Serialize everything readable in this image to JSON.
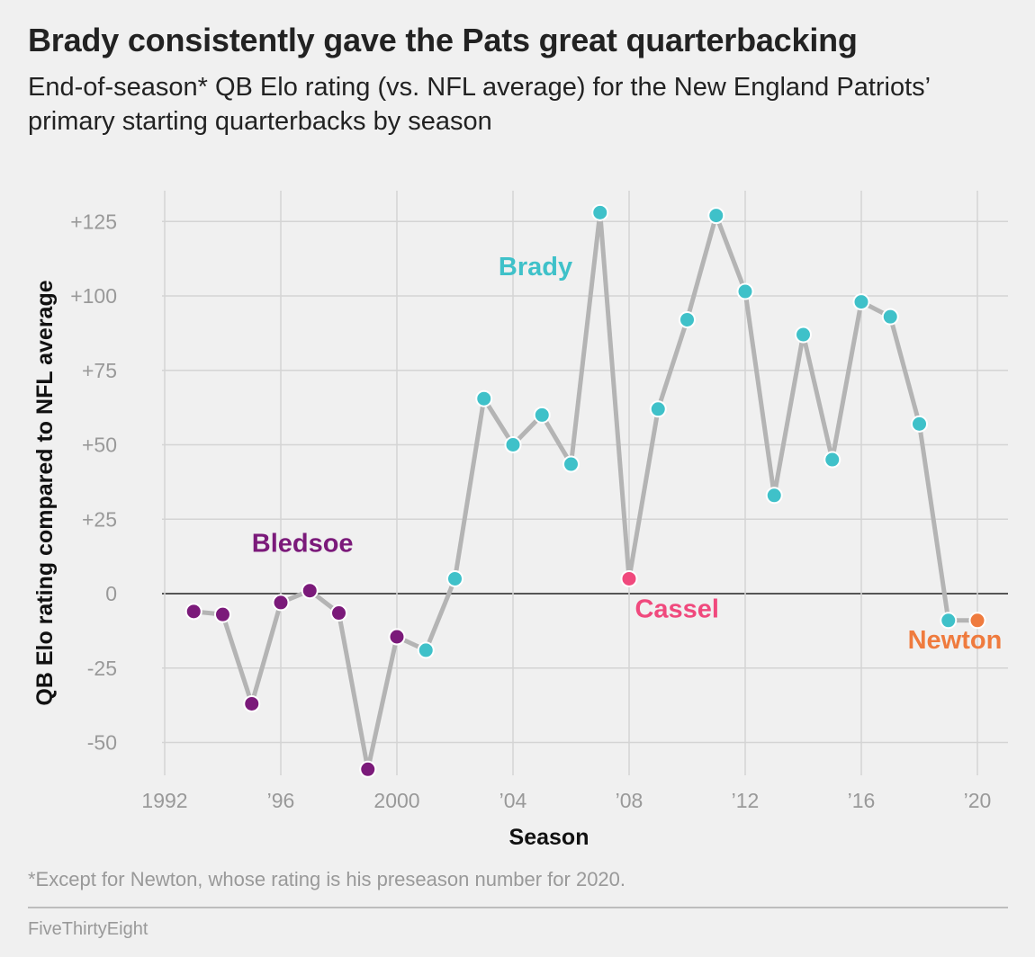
{
  "header": {
    "title": "Brady consistently gave the Pats great quarterbacking",
    "subtitle": "End-of-season* QB Elo rating (vs. NFL average) for the New England Patriots’ primary starting quarterbacks by season"
  },
  "footer": {
    "footnote": "*Except for Newton, whose rating is his preseason number for 2020.",
    "source": "FiveThirtyEight"
  },
  "colors": {
    "Bledsoe": "#7b1a7a",
    "Brady": "#3fc1c9",
    "Cassel": "#f0497d",
    "Newton": "#ef7b3e",
    "line": "#b4b4b4"
  },
  "chart_data": {
    "type": "line",
    "xlabel": "Season",
    "ylabel": "QB Elo rating compared to NFL average",
    "xlim": [
      1992,
      2020
    ],
    "ylim": [
      -60,
      135
    ],
    "x_ticks": [
      {
        "value": 1992,
        "label": "1992"
      },
      {
        "value": 1996,
        "label": "’96"
      },
      {
        "value": 2000,
        "label": "2000"
      },
      {
        "value": 2004,
        "label": "’04"
      },
      {
        "value": 2008,
        "label": "’08"
      },
      {
        "value": 2012,
        "label": "’12"
      },
      {
        "value": 2016,
        "label": "’16"
      },
      {
        "value": 2020,
        "label": "’20"
      }
    ],
    "y_ticks": [
      {
        "value": 125,
        "label": "+125"
      },
      {
        "value": 100,
        "label": "+100"
      },
      {
        "value": 75,
        "label": "+75"
      },
      {
        "value": 50,
        "label": "+50"
      },
      {
        "value": 25,
        "label": "+25"
      },
      {
        "value": 0,
        "label": "0"
      },
      {
        "value": -25,
        "label": "-25"
      },
      {
        "value": -50,
        "label": "-50"
      }
    ],
    "grid": true,
    "series_labels": [
      {
        "name": "Bledsoe",
        "x": 1995,
        "y": 14
      },
      {
        "name": "Brady",
        "x": 2003.5,
        "y": 107
      },
      {
        "name": "Cassel",
        "x": 2008.2,
        "y": -8
      },
      {
        "name": "Newton",
        "x": 2017.6,
        "y": -18.5
      }
    ],
    "points": [
      {
        "season": 1993,
        "value": -6,
        "qb": "Bledsoe"
      },
      {
        "season": 1994,
        "value": -7,
        "qb": "Bledsoe"
      },
      {
        "season": 1995,
        "value": -37,
        "qb": "Bledsoe"
      },
      {
        "season": 1996,
        "value": -3,
        "qb": "Bledsoe"
      },
      {
        "season": 1997,
        "value": 1,
        "qb": "Bledsoe"
      },
      {
        "season": 1998,
        "value": -6.5,
        "qb": "Bledsoe"
      },
      {
        "season": 1999,
        "value": -59,
        "qb": "Bledsoe"
      },
      {
        "season": 2000,
        "value": -14.5,
        "qb": "Bledsoe"
      },
      {
        "season": 2001,
        "value": -19,
        "qb": "Brady"
      },
      {
        "season": 2002,
        "value": 5,
        "qb": "Brady"
      },
      {
        "season": 2003,
        "value": 65.5,
        "qb": "Brady"
      },
      {
        "season": 2004,
        "value": 50,
        "qb": "Brady"
      },
      {
        "season": 2005,
        "value": 60,
        "qb": "Brady"
      },
      {
        "season": 2006,
        "value": 43.5,
        "qb": "Brady"
      },
      {
        "season": 2007,
        "value": 128,
        "qb": "Brady"
      },
      {
        "season": 2008,
        "value": 5,
        "qb": "Cassel"
      },
      {
        "season": 2009,
        "value": 62,
        "qb": "Brady"
      },
      {
        "season": 2010,
        "value": 92,
        "qb": "Brady"
      },
      {
        "season": 2011,
        "value": 127,
        "qb": "Brady"
      },
      {
        "season": 2012,
        "value": 101.5,
        "qb": "Brady"
      },
      {
        "season": 2013,
        "value": 33,
        "qb": "Brady"
      },
      {
        "season": 2014,
        "value": 87,
        "qb": "Brady"
      },
      {
        "season": 2015,
        "value": 45,
        "qb": "Brady"
      },
      {
        "season": 2016,
        "value": 98,
        "qb": "Brady"
      },
      {
        "season": 2017,
        "value": 93,
        "qb": "Brady"
      },
      {
        "season": 2018,
        "value": 57,
        "qb": "Brady"
      },
      {
        "season": 2019,
        "value": -9,
        "qb": "Brady"
      },
      {
        "season": 2020,
        "value": -9,
        "qb": "Newton"
      }
    ]
  }
}
